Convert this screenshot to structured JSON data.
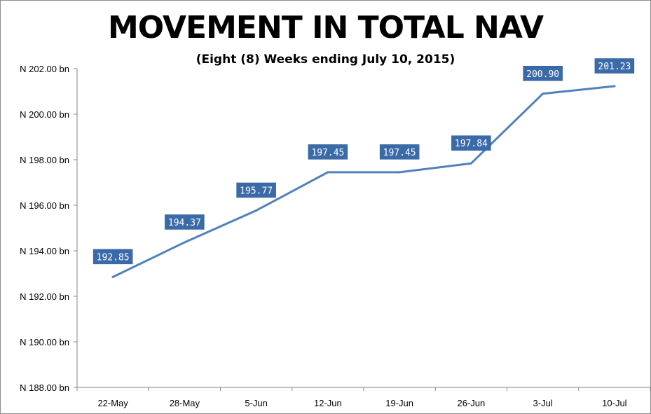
{
  "chart_data": {
    "type": "line",
    "title": "MOVEMENT IN TOTAL NAV",
    "subtitle": "(Eight (8) Weeks ending July 10, 2015)",
    "xlabel": "",
    "ylabel": "",
    "categories": [
      "22-May",
      "28-May",
      "5-Jun",
      "12-Jun",
      "19-Jun",
      "26-Jun",
      "3-Jul",
      "10-Jul"
    ],
    "series": [
      {
        "values": [
          192.85,
          194.37,
          195.77,
          197.45,
          197.45,
          197.84,
          200.9,
          201.23
        ],
        "labels": [
          "192.85",
          "194.37",
          "195.77",
          "197.45",
          "197.45",
          "197.84",
          "200.90",
          "201.23"
        ]
      }
    ],
    "ylim": [
      188,
      202
    ],
    "yticks": [
      188,
      190,
      192,
      194,
      196,
      198,
      200,
      202
    ],
    "ytick_labels": [
      "N 188.00 bn",
      "N 190.00 bn",
      "N 192.00 bn",
      "N 194.00 bn",
      "N 196.00 bn",
      "N 198.00 bn",
      "N 200.00 bn",
      "N 202.00 bn"
    ],
    "grid": false,
    "legend": "none",
    "colors": {
      "line": "#4f81bd",
      "label_bg": "#3a6aa8",
      "label_text": "#ffffff",
      "axis": "#868686"
    }
  }
}
